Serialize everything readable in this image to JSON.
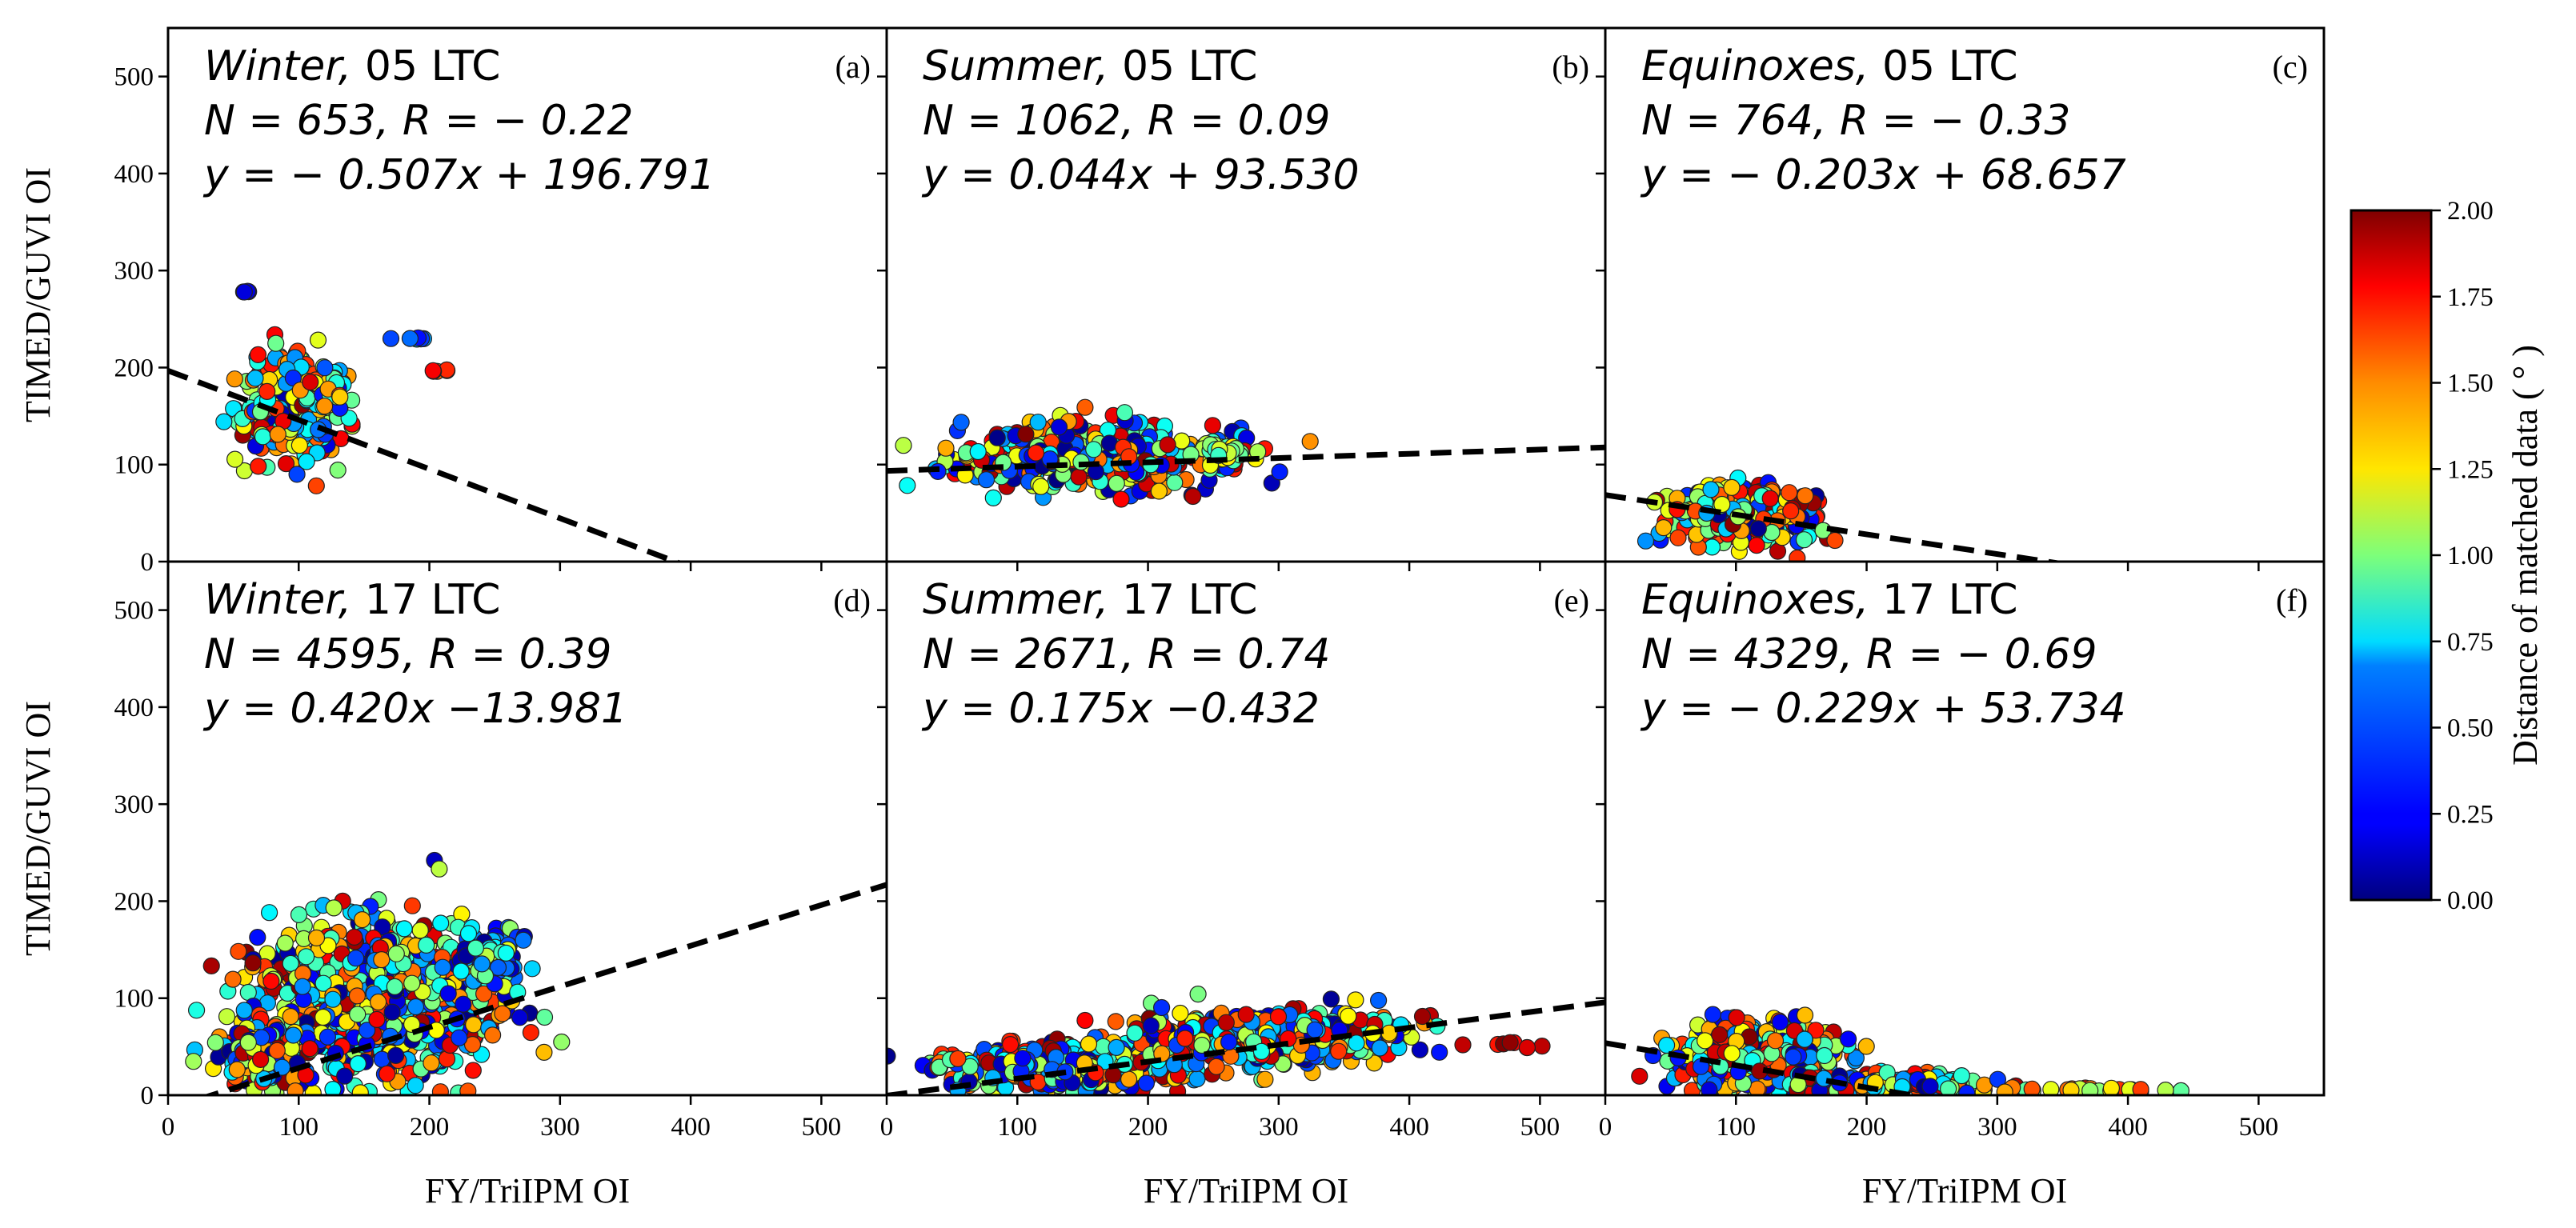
{
  "figure": {
    "xlabel": "FY/TriIPM OI",
    "ylabel": "TIMED/GUVI OI",
    "colorbar": {
      "label": "Distance of matched data ( ° )",
      "ticks": [
        "0.00",
        "0.25",
        "0.50",
        "0.75",
        "1.00",
        "1.25",
        "1.50",
        "1.75",
        "2.00"
      ],
      "range": [
        0,
        2
      ],
      "colormap": "jet"
    }
  },
  "chart_data": [
    {
      "panel": "(a)",
      "type": "scatter",
      "season": "Winter",
      "ltc": "05 LTC",
      "stats": "N = 653,  R = − 0.22",
      "fit_text": "y = − 0.507x  +  196.791",
      "fit": {
        "slope": -0.507,
        "intercept": 196.791
      },
      "xlim": [
        0,
        550
      ],
      "ylim": [
        0,
        550
      ],
      "xticks": [
        "0",
        "100",
        "200",
        "300",
        "400",
        "500"
      ],
      "yticks": [
        "0",
        "100",
        "200",
        "300",
        "400",
        "500"
      ],
      "clusters": [
        {
          "cx": 95,
          "cy": 150,
          "rx": 35,
          "ry": 45,
          "n": 210,
          "seed": 11,
          "cmin": 0.0,
          "cmax": 2.0
        },
        {
          "cx": 85,
          "cy": 200,
          "rx": 25,
          "ry": 25,
          "n": 45,
          "seed": 12,
          "cmin": 0.5,
          "cmax": 1.8
        },
        {
          "cx": 120,
          "cy": 175,
          "rx": 18,
          "ry": 25,
          "n": 40,
          "seed": 13,
          "cmin": 0.2,
          "cmax": 1.9
        },
        {
          "cx": 60,
          "cy": 278,
          "rx": 3,
          "ry": 1,
          "n": 4,
          "seed": 14,
          "cmin": 0.0,
          "cmax": 0.2
        },
        {
          "cx": 185,
          "cy": 230,
          "rx": 15,
          "ry": 1,
          "n": 8,
          "seed": 15,
          "cmin": 0.2,
          "cmax": 1.0
        },
        {
          "cx": 210,
          "cy": 197,
          "rx": 12,
          "ry": 1,
          "n": 5,
          "seed": 16,
          "cmin": 1.5,
          "cmax": 1.9
        }
      ]
    },
    {
      "panel": "(b)",
      "type": "scatter",
      "season": "Summer",
      "ltc": "05 LTC",
      "stats": "N = 1062,  R = 0.09",
      "fit_text": "y = 0.044x  +  93.530",
      "fit": {
        "slope": 0.044,
        "intercept": 93.53
      },
      "xlim": [
        0,
        550
      ],
      "ylim": [
        0,
        550
      ],
      "xticks": [
        "0",
        "100",
        "200",
        "300",
        "400",
        "500"
      ],
      "yticks": [
        "0",
        "100",
        "200",
        "300",
        "400",
        "500"
      ],
      "clusters": [
        {
          "cx": 160,
          "cy": 108,
          "rx": 95,
          "ry": 30,
          "n": 520,
          "seed": 21,
          "cmin": 0.0,
          "cmax": 2.0
        },
        {
          "cx": 255,
          "cy": 112,
          "rx": 20,
          "ry": 10,
          "n": 30,
          "seed": 22,
          "cmin": 0.8,
          "cmax": 1.3
        }
      ]
    },
    {
      "panel": "(c)",
      "type": "scatter",
      "season": "Equinoxes",
      "ltc": "05 LTC",
      "stats": "N = 764,  R = − 0.33",
      "fit_text": "y = − 0.203x  +  68.657",
      "fit": {
        "slope": -0.203,
        "intercept": 68.657
      },
      "xlim": [
        0,
        550
      ],
      "ylim": [
        0,
        550
      ],
      "xticks": [
        "0",
        "100",
        "200",
        "300",
        "400",
        "500"
      ],
      "yticks": [
        "0",
        "100",
        "200",
        "300",
        "400",
        "500"
      ],
      "clusters": [
        {
          "cx": 105,
          "cy": 48,
          "rx": 45,
          "ry": 25,
          "n": 380,
          "seed": 31,
          "cmin": 0.0,
          "cmax": 2.0
        }
      ]
    },
    {
      "panel": "(d)",
      "type": "scatter",
      "season": "Winter",
      "ltc": "17 LTC",
      "stats": "N = 4595,  R = 0.39",
      "fit_text": "y = 0.420x  −13.981",
      "fit": {
        "slope": 0.42,
        "intercept": -13.981
      },
      "xlim": [
        0,
        550
      ],
      "ylim": [
        0,
        550
      ],
      "xticks": [
        "0",
        "100",
        "200",
        "300",
        "400",
        "500"
      ],
      "yticks": [
        "0",
        "100",
        "200",
        "300",
        "400",
        "500"
      ],
      "clusters": [
        {
          "cx": 160,
          "cy": 100,
          "rx": 85,
          "ry": 70,
          "n": 950,
          "seed": 41,
          "cmin": 0.0,
          "cmax": 2.0
        },
        {
          "cx": 70,
          "cy": 40,
          "rx": 30,
          "ry": 30,
          "n": 150,
          "seed": 42,
          "cmin": 0.0,
          "cmax": 2.0
        },
        {
          "cx": 245,
          "cy": 140,
          "rx": 25,
          "ry": 30,
          "n": 70,
          "seed": 43,
          "cmin": 0.0,
          "cmax": 1.2
        }
      ]
    },
    {
      "panel": "(e)",
      "type": "scatter",
      "season": "Summer",
      "ltc": "17 LTC",
      "stats": "N = 2671,  R = 0.74",
      "fit_text": "y = 0.175x  −0.432",
      "fit": {
        "slope": 0.175,
        "intercept": -0.432
      },
      "xlim": [
        0,
        550
      ],
      "ylim": [
        0,
        550
      ],
      "xticks": [
        "0",
        "100",
        "200",
        "300",
        "400",
        "500"
      ],
      "yticks": [
        "0",
        "100",
        "200",
        "300",
        "400",
        "500"
      ],
      "clusters": [
        {
          "cx": 140,
          "cy": 30,
          "rx": 90,
          "ry": 20,
          "n": 520,
          "seed": 51,
          "cmin": 0.0,
          "cmax": 2.0
        },
        {
          "cx": 300,
          "cy": 60,
          "rx": 85,
          "ry": 25,
          "n": 520,
          "seed": 52,
          "cmin": 0.0,
          "cmax": 2.0
        },
        {
          "cx": 480,
          "cy": 52,
          "rx": 20,
          "ry": 4,
          "n": 8,
          "seed": 53,
          "cmin": 1.7,
          "cmax": 2.0
        }
      ]
    },
    {
      "panel": "(f)",
      "type": "scatter",
      "season": "Equinoxes",
      "ltc": "17 LTC",
      "stats": "N = 4329,  R = − 0.69",
      "fit_text": "y = − 0.229x  +  53.734",
      "fit": {
        "slope": -0.229,
        "intercept": 53.734
      },
      "xlim": [
        0,
        550
      ],
      "ylim": [
        0,
        550
      ],
      "xticks": [
        "0",
        "100",
        "200",
        "300",
        "400",
        "500"
      ],
      "yticks": [
        "0",
        "100",
        "200",
        "300",
        "400",
        "500"
      ],
      "clusters": [
        {
          "cx": 115,
          "cy": 40,
          "rx": 55,
          "ry": 30,
          "n": 620,
          "seed": 61,
          "cmin": 0.0,
          "cmax": 2.0
        },
        {
          "cx": 220,
          "cy": 12,
          "rx": 60,
          "ry": 8,
          "n": 180,
          "seed": 62,
          "cmin": 0.0,
          "cmax": 2.0
        },
        {
          "cx": 360,
          "cy": 6,
          "rx": 65,
          "ry": 2,
          "n": 25,
          "seed": 63,
          "cmin": 0.9,
          "cmax": 1.8
        }
      ]
    }
  ]
}
